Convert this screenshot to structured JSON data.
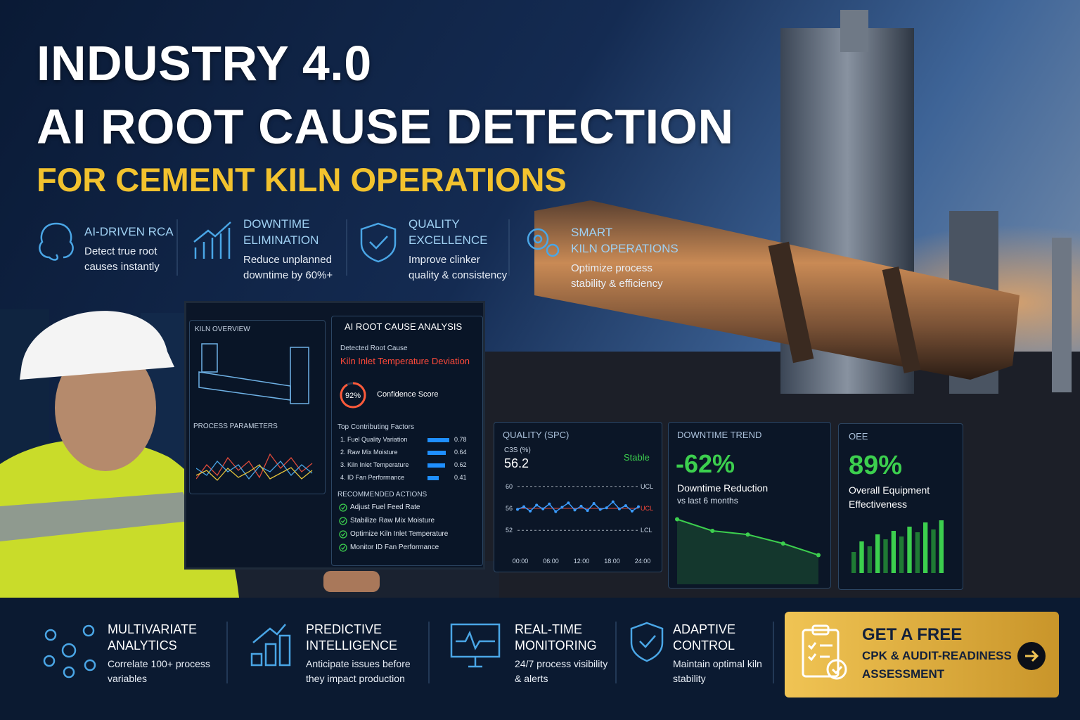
{
  "header": {
    "line1": "INDUSTRY 4.0",
    "line2": "AI ROOT CAUSE DETECTION",
    "line3": "FOR CEMENT KILN OPERATIONS"
  },
  "features": [
    {
      "title": [
        "AI-DRIVEN RCA"
      ],
      "description": [
        "Detect true root",
        "causes instantly"
      ]
    },
    {
      "title": [
        "DOWNTIME",
        "ELIMINATION"
      ],
      "description": [
        "Reduce unplanned",
        "downtime by 60%+"
      ]
    },
    {
      "title": [
        "QUALITY",
        "EXCELLENCE"
      ],
      "description": [
        "Improve clinker",
        "quality & consistency"
      ]
    },
    {
      "title": [
        "SMART",
        "KILN OPERATIONS"
      ],
      "description": [
        "Optimize process",
        "stability & efficiency"
      ]
    }
  ],
  "monitor": {
    "kiln_overview": "KILN OVERVIEW",
    "process_parameters": "PROCESS PARAMETERS",
    "analysis_title": "AI ROOT CAUSE ANALYSIS",
    "detected_label": "Detected Root Cause",
    "detected_cause": "Kiln Inlet Temperature Deviation",
    "confidence": {
      "value": 92,
      "label": "92%"
    },
    "confidence_label": "Confidence Score",
    "factors_title": "Top Contributing Factors",
    "factors": [
      {
        "name": "1. Fuel Quality Variation",
        "value": 0.78
      },
      {
        "name": "2. Raw Mix Moisture",
        "value": 0.64
      },
      {
        "name": "3. Kiln Inlet Temperature",
        "value": 0.62
      },
      {
        "name": "4. ID Fan Performance",
        "value": 0.41
      }
    ],
    "actions_title": "RECOMMENDED ACTIONS",
    "actions": [
      "Adjust Fuel Feed Rate",
      "Stabilize Raw Mix Moisture",
      "Optimize Kiln Inlet Temperature",
      "Monitor ID Fan Performance"
    ]
  },
  "cards": {
    "quality": {
      "title": "QUALITY (SPC)",
      "metric_label": "C3S (%)",
      "metric": 56.2,
      "status": "Stable",
      "ylim": [
        51,
        61
      ],
      "limits": [
        {
          "value": 60,
          "label": "UCL"
        },
        {
          "value": 56,
          "label": "UCL"
        },
        {
          "value": 52,
          "label": "LCL"
        }
      ],
      "x_labels": [
        "00:00",
        "06:00",
        "12:00",
        "18:00",
        "24:00"
      ],
      "values": [
        55.8,
        56.3,
        55.5,
        56.6,
        55.9,
        56.8,
        55.4,
        56.2,
        57.0,
        55.7,
        56.4,
        55.6,
        56.9,
        55.8,
        56.1,
        57.2,
        55.9,
        56.5,
        55.5,
        56.3
      ]
    },
    "downtime": {
      "title": "DOWNTIME TREND",
      "metric": "-62%",
      "metric_label": "Downtime Reduction",
      "period": "vs last 6 months",
      "ylim": [
        0,
        100
      ],
      "values": [
        90,
        68,
        61,
        44,
        22
      ]
    },
    "oee": {
      "title": "OEE",
      "metric": "89%",
      "metric_label": [
        "Overall Equipment",
        "Effectiveness"
      ],
      "ylim": [
        0,
        100
      ],
      "values": [
        30,
        45,
        38,
        55,
        48,
        60,
        52,
        66,
        58,
        72,
        62,
        75
      ]
    }
  },
  "bottom_features": [
    {
      "title": [
        "MULTIVARIATE",
        "ANALYTICS"
      ],
      "description": [
        "Correlate 100+ process",
        "variables"
      ]
    },
    {
      "title": [
        "PREDICTIVE",
        "INTELLIGENCE"
      ],
      "description": [
        "Anticipate issues before",
        "they impact production"
      ]
    },
    {
      "title": [
        "REAL-TIME",
        "MONITORING"
      ],
      "description": [
        "24/7 process visibility",
        "& alerts"
      ]
    },
    {
      "title": [
        "ADAPTIVE",
        "CONTROL"
      ],
      "description": [
        "Maintain optimal kiln",
        "stability"
      ]
    }
  ],
  "cta": {
    "lines": [
      "GET A FREE",
      "CPK & AUDIT-READINESS",
      "ASSESSMENT"
    ]
  }
}
